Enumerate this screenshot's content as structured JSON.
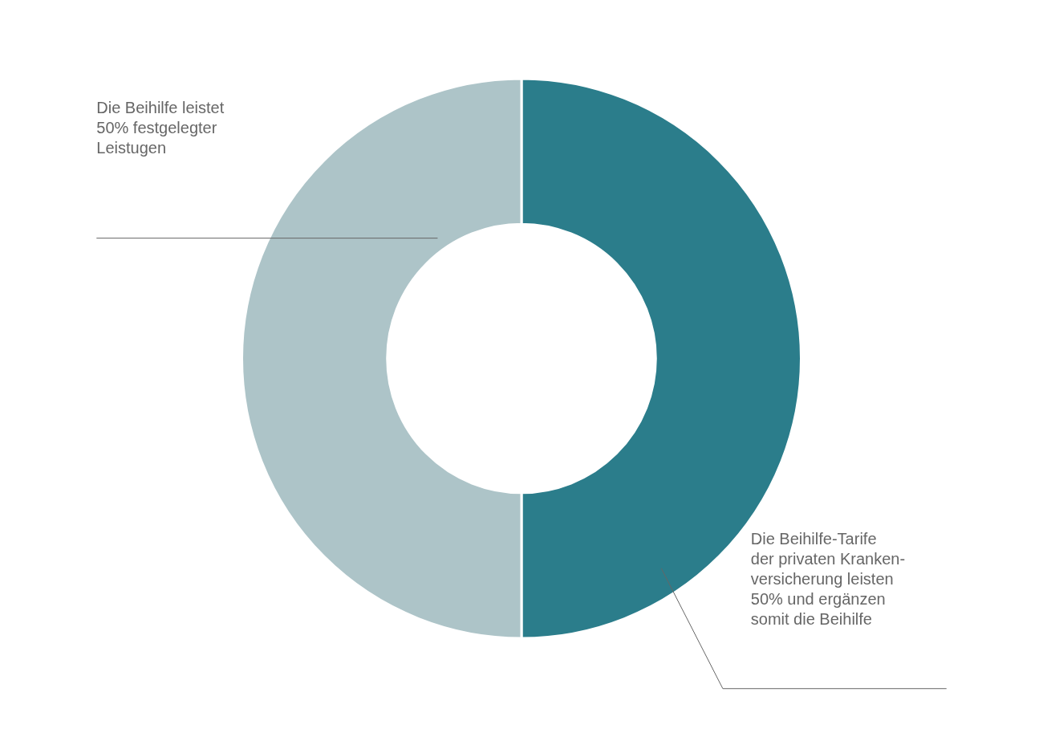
{
  "chart_data": {
    "type": "doughnut",
    "values": [
      50,
      50
    ],
    "colors": [
      "#2b7d8b",
      "#adc4c8"
    ],
    "annotations": [
      "Die Beihilfe leistet\n50% festgelegter\nLeistugen",
      "Die Beihilfe-Tarife\nder privaten Kranken-\nversicherung leisten\n50% und ergänzen\nsomit die Beihilfe"
    ]
  }
}
